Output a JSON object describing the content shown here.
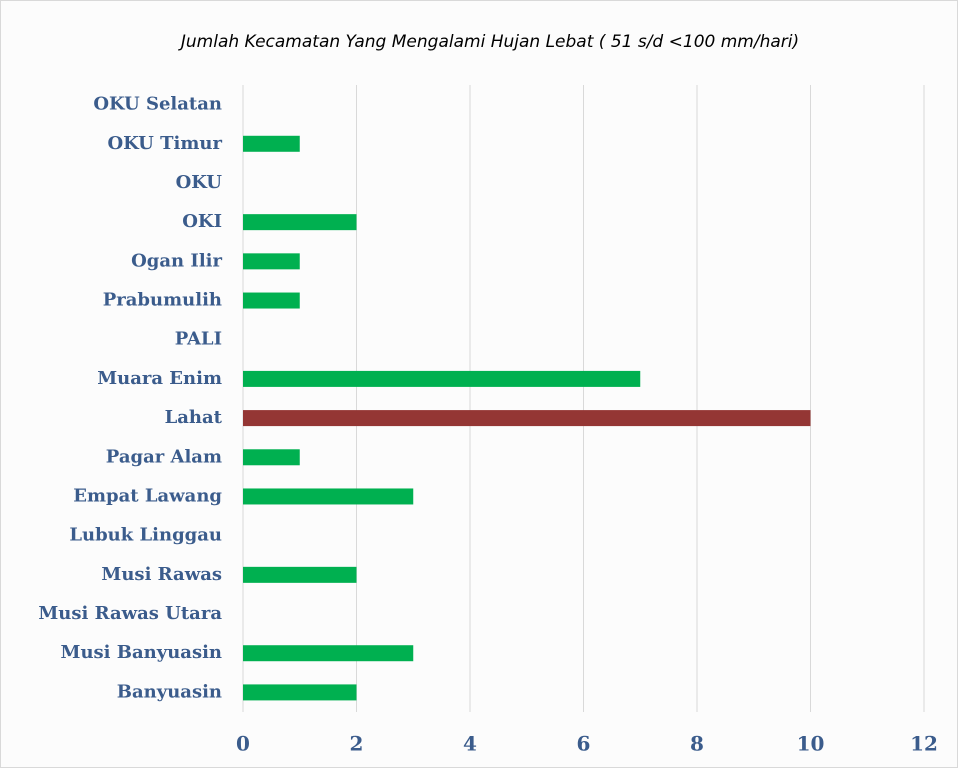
{
  "chart_data": {
    "type": "barh",
    "title": "Jumlah Kecamatan Yang Mengalami Hujan Lebat ( 51 s/d <100 mm/hari)",
    "categories": [
      "OKU Selatan",
      "OKU Timur",
      "OKU",
      "OKI",
      "Ogan Ilir",
      "Prabumulih",
      "PALI",
      "Muara Enim",
      "Lahat",
      "Pagar Alam",
      "Empat Lawang",
      "Lubuk Linggau",
      "Musi Rawas",
      "Musi Rawas Utara",
      "Musi Banyuasin",
      "Banyuasin"
    ],
    "values": [
      0,
      1,
      0,
      2,
      1,
      1,
      0,
      7,
      10,
      1,
      3,
      0,
      2,
      0,
      3,
      2
    ],
    "colors": [
      "#00b050",
      "#00b050",
      "#00b050",
      "#00b050",
      "#00b050",
      "#00b050",
      "#00b050",
      "#00b050",
      "#943634",
      "#00b050",
      "#00b050",
      "#00b050",
      "#00b050",
      "#00b050",
      "#00b050",
      "#00b050"
    ],
    "xlim": [
      0,
      12
    ],
    "xticks": [
      0,
      2,
      4,
      6,
      8,
      10,
      12
    ],
    "grid": true
  }
}
